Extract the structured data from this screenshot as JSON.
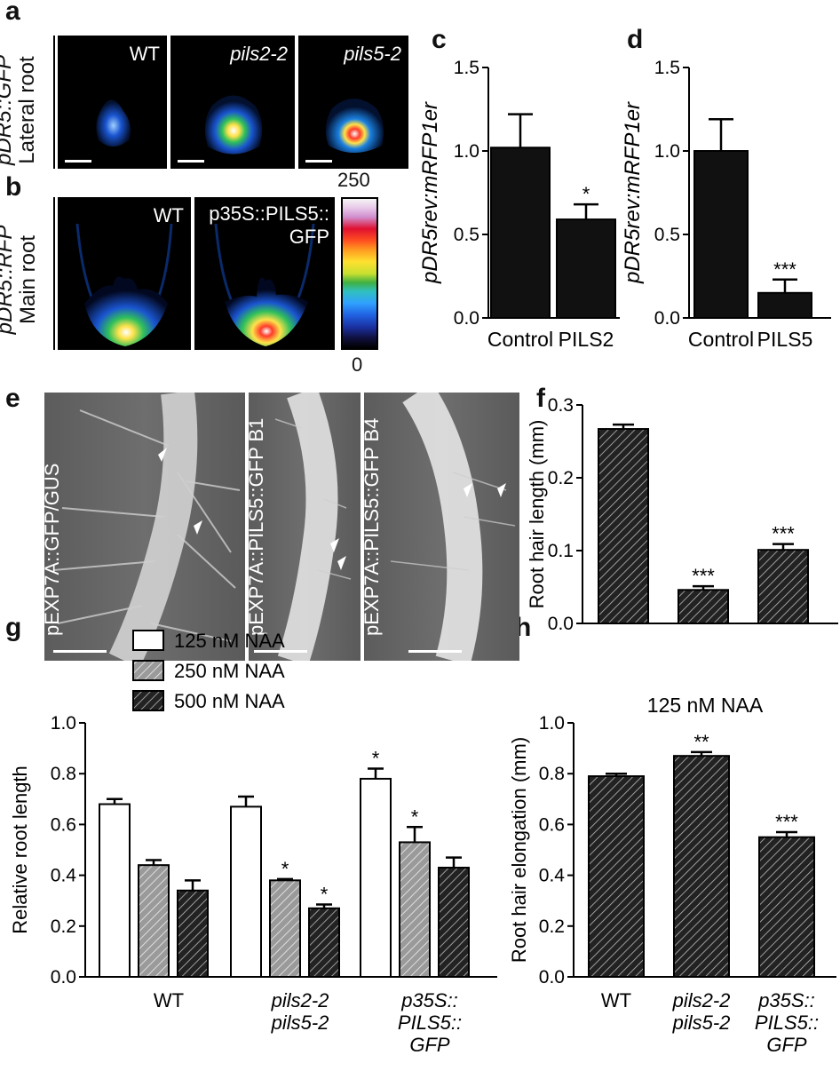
{
  "panel_letters": {
    "a": "a",
    "b": "b",
    "c": "c",
    "d": "d",
    "e": "e",
    "f": "f",
    "g": "g",
    "h": "h"
  },
  "panel_a": {
    "ylabel_line1": "pDR5::GFP",
    "ylabel_line2": "Lateral root",
    "images": [
      "WT",
      "pils2-2",
      "pils5-2"
    ]
  },
  "panel_b": {
    "ylabel_line1": "pDR5::RFP",
    "ylabel_line2": "Main root",
    "images": [
      "WT",
      "p35S::PILS5::",
      "GFP"
    ],
    "colorbar_max": "250",
    "colorbar_min": "0"
  },
  "panel_e": {
    "images": [
      "pEXP7A::GFP/GUS",
      "pEXP7A::PILS5::GFP B1",
      "pEXP7A::PILS5::GFP B4"
    ]
  },
  "colors": {
    "black_bar": "#111111",
    "white_bar": "#ffffff",
    "gray_hatch": "#9a9a9a"
  },
  "chart_data": [
    {
      "id": "c",
      "type": "bar",
      "categories": [
        "Control",
        "PILS2"
      ],
      "values": [
        1.02,
        0.59
      ],
      "errors": [
        0.2,
        0.09
      ],
      "significance": [
        "",
        "*"
      ],
      "ylabel": "pDR5rev:mRFP1er",
      "ylim": [
        0,
        1.5
      ],
      "yticks": [
        "0.0",
        "0.5",
        "1.0",
        "1.5"
      ],
      "bar_fill": "solid-black"
    },
    {
      "id": "d",
      "type": "bar",
      "categories": [
        "Control",
        "PILS5"
      ],
      "values": [
        1.0,
        0.15
      ],
      "errors": [
        0.19,
        0.08
      ],
      "significance": [
        "",
        "***"
      ],
      "ylabel": "pDR5rev:mRFP1er",
      "ylim": [
        0,
        1.5
      ],
      "yticks": [
        "0.0",
        "0.5",
        "1.0",
        "1.5"
      ],
      "bar_fill": "solid-black"
    },
    {
      "id": "f",
      "type": "bar",
      "categories": [
        [
          "GFP/",
          "GUS"
        ],
        [
          "PILS5",
          "B1"
        ],
        [
          "PILS5",
          "B4"
        ]
      ],
      "values": [
        0.267,
        0.046,
        0.101
      ],
      "errors": [
        0.006,
        0.005,
        0.008
      ],
      "significance": [
        "",
        "***",
        "***"
      ],
      "ylabel": "Root hair length (mm)",
      "ylim": [
        0,
        0.3
      ],
      "yticks": [
        "0.0",
        "0.1",
        "0.2",
        "0.3"
      ],
      "bar_fill": "hatched-dark"
    },
    {
      "id": "g",
      "type": "bar",
      "categories": [
        [
          "WT"
        ],
        [
          "pils2-2",
          "pils5-2"
        ],
        [
          "p35S::",
          "PILS5::",
          "GFP"
        ]
      ],
      "series": [
        {
          "name": "125 nM NAA",
          "values": [
            0.68,
            0.67,
            0.78
          ],
          "errors": [
            0.02,
            0.04,
            0.04
          ],
          "significance": [
            "",
            "",
            "*"
          ],
          "fill": "white"
        },
        {
          "name": "250 nM NAA",
          "values": [
            0.44,
            0.38,
            0.53
          ],
          "errors": [
            0.02,
            0.005,
            0.06
          ],
          "significance": [
            "",
            "*",
            "*"
          ],
          "fill": "hatched-gray"
        },
        {
          "name": "500 nM NAA",
          "values": [
            0.34,
            0.27,
            0.43
          ],
          "errors": [
            0.04,
            0.015,
            0.04
          ],
          "significance": [
            "",
            "*",
            ""
          ],
          "fill": "hatched-dark"
        }
      ],
      "ylabel": "Relative root length",
      "ylim": [
        0,
        1.0
      ],
      "yticks": [
        "0.0",
        "0.2",
        "0.4",
        "0.6",
        "0.8",
        "1.0"
      ],
      "legend_position": "top-left"
    },
    {
      "id": "h",
      "type": "bar",
      "title": "125 nM NAA",
      "categories": [
        [
          "WT"
        ],
        [
          "pils2-2",
          "pils5-2"
        ],
        [
          "p35S::",
          "PILS5::",
          "GFP"
        ]
      ],
      "values": [
        0.79,
        0.87,
        0.55
      ],
      "errors": [
        0.01,
        0.015,
        0.02
      ],
      "significance": [
        "",
        "**",
        "***"
      ],
      "ylabel": "Root hair elongation (mm)",
      "ylim": [
        0,
        1.0
      ],
      "yticks": [
        "0.0",
        "0.2",
        "0.4",
        "0.6",
        "0.8",
        "1.0"
      ],
      "bar_fill": "hatched-dark"
    }
  ]
}
